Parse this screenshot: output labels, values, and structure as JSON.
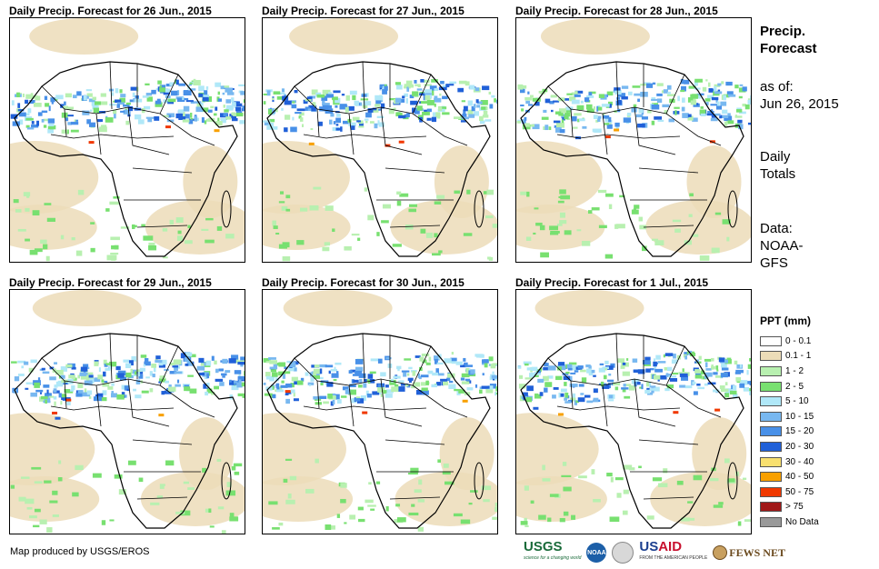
{
  "panels": [
    {
      "title": "Daily Precip. Forecast for 26 Jun., 2015"
    },
    {
      "title": "Daily Precip. Forecast for 27 Jun., 2015"
    },
    {
      "title": "Daily Precip. Forecast for 28 Jun., 2015"
    },
    {
      "title": "Daily Precip. Forecast for 29 Jun., 2015"
    },
    {
      "title": "Daily Precip. Forecast for 30 Jun., 2015"
    },
    {
      "title": "Daily Precip. Forecast for 1 Jul., 2015"
    }
  ],
  "side": {
    "title_line1": "Precip.",
    "title_line2": "Forecast",
    "asof_line1": "as of:",
    "asof_line2": "Jun 26, 2015",
    "totals_line1": "Daily",
    "totals_line2": "Totals",
    "data_line1": "Data:",
    "data_line2": "NOAA-",
    "data_line3": "GFS"
  },
  "legend": {
    "title": "PPT (mm)",
    "items": [
      {
        "label": "0 - 0.1",
        "color": "#ffffff"
      },
      {
        "label": "0.1 - 1",
        "color": "#ecdcb8"
      },
      {
        "label": "1 - 2",
        "color": "#b8f0b0"
      },
      {
        "label": "2 - 5",
        "color": "#78e070"
      },
      {
        "label": "5 - 10",
        "color": "#b0e8f8"
      },
      {
        "label": "10 - 15",
        "color": "#78b8f0"
      },
      {
        "label": "15 - 20",
        "color": "#4890e8"
      },
      {
        "label": "20 - 30",
        "color": "#2060d8"
      },
      {
        "label": "30 - 40",
        "color": "#f8e070"
      },
      {
        "label": "40 - 50",
        "color": "#f8a000"
      },
      {
        "label": "50 - 75",
        "color": "#f03800"
      },
      {
        "label": "> 75",
        "color": "#a01818"
      },
      {
        "label": "No Data",
        "color": "#999999"
      }
    ]
  },
  "credit": "Map produced by USGS/EROS",
  "logos": {
    "usgs": "USGS",
    "usgs_tag": "science for a changing world",
    "noaa": "NOAA",
    "usaid_us": "US",
    "usaid_aid": "AID",
    "usaid_tag": "FROM THE AMERICAN PEOPLE",
    "fews": "FEWS NET"
  }
}
